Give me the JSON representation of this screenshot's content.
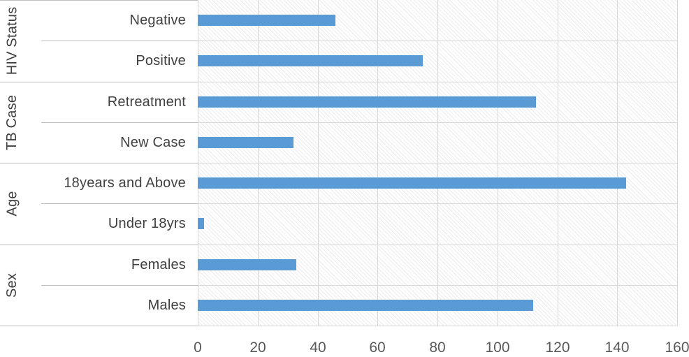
{
  "chart_data": {
    "type": "bar",
    "orientation": "horizontal",
    "title": null,
    "legend": null,
    "grid": "on",
    "plot_background": "light-diagonal-hatch",
    "groups": [
      {
        "label": "HIV Status",
        "items": [
          {
            "category": "Negative",
            "value": 46
          },
          {
            "category": "Positive",
            "value": 75
          }
        ]
      },
      {
        "label": "TB Case",
        "items": [
          {
            "category": "Retreatment",
            "value": 113
          },
          {
            "category": "New Case",
            "value": 32
          }
        ]
      },
      {
        "label": "Age",
        "items": [
          {
            "category": "18years and Above",
            "value": 143
          },
          {
            "category": "Under 18yrs",
            "value": 2
          }
        ]
      },
      {
        "label": "Sex",
        "items": [
          {
            "category": "Females",
            "value": 33
          },
          {
            "category": "Males",
            "value": 112
          }
        ]
      }
    ],
    "x_axis": {
      "min": 0,
      "max": 160,
      "tick_interval": 20,
      "tick_labels": [
        "0",
        "20",
        "40",
        "60",
        "80",
        "100",
        "120",
        "140",
        "160"
      ]
    },
    "colors": {
      "bar": "#5b9bd5",
      "gridline": "#d8d8d8",
      "separator": "#bdbdbd",
      "category_label": "#404040",
      "tick_label": "#595959",
      "background": "#ffffff"
    }
  }
}
